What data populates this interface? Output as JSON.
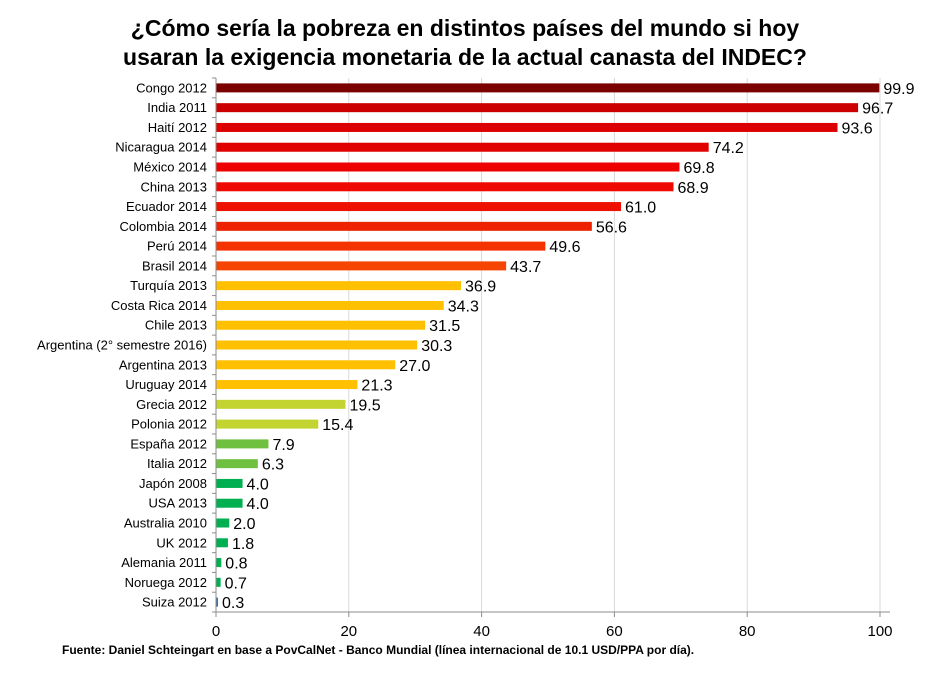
{
  "chart_data": {
    "type": "bar",
    "orientation": "horizontal",
    "title_lines": [
      "¿Cómo sería la pobreza en distintos países del mundo si hoy",
      "usaran la exigencia monetaria de la actual canasta del INDEC?"
    ],
    "categories": [
      "Congo 2012",
      "India 2011",
      "Haití 2012",
      "Nicaragua 2014",
      "México 2014",
      "China 2013",
      "Ecuador 2014",
      "Colombia 2014",
      "Perú 2014",
      "Brasil 2014",
      "Turquía 2013",
      "Costa Rica 2014",
      "Chile 2013",
      "Argentina (2° semestre 2016)",
      "Argentina 2013",
      "Uruguay 2014",
      "Grecia 2012",
      "Polonia 2012",
      "España 2012",
      "Italia 2012",
      "Japón 2008",
      "USA 2013",
      "Australia 2010",
      "UK 2012",
      "Alemania 2011",
      "Noruega 2012",
      "Suiza 2012"
    ],
    "values": [
      99.9,
      96.7,
      93.6,
      74.2,
      69.8,
      68.9,
      61.0,
      56.6,
      49.6,
      43.7,
      36.9,
      34.3,
      31.5,
      30.3,
      27.0,
      21.3,
      19.5,
      15.4,
      7.9,
      6.3,
      4.0,
      4.0,
      2.0,
      1.8,
      0.8,
      0.7,
      0.3
    ],
    "value_labels": [
      "99.9",
      "96.7",
      "93.6",
      "74.2",
      "69.8",
      "68.9",
      "61.0",
      "56.6",
      "49.6",
      "43.7",
      "36.9",
      "34.3",
      "31.5",
      "30.3",
      "27.0",
      "21.3",
      "19.5",
      "15.4",
      "7.9",
      "6.3",
      "4.0",
      "4.0",
      "2.0",
      "1.8",
      "0.8",
      "0.7",
      "0.3"
    ],
    "colors": [
      "#7b0000",
      "#cc0000",
      "#dd0000",
      "#e00000",
      "#ee0000",
      "#ee0a00",
      "#ee1100",
      "#ee2200",
      "#f53300",
      "#f54500",
      "#ffc000",
      "#ffc000",
      "#ffc000",
      "#ffc000",
      "#ffc000",
      "#ffc000",
      "#c3d430",
      "#c3d430",
      "#70c040",
      "#70c040",
      "#00b050",
      "#00b050",
      "#00b050",
      "#00b050",
      "#00b050",
      "#00b050",
      "#2e75b6"
    ],
    "xlim": [
      0,
      100
    ],
    "xticks": [
      "0",
      "20",
      "40",
      "60",
      "80",
      "100"
    ],
    "xtick_values": [
      0,
      20,
      40,
      60,
      80,
      100
    ],
    "grid": true,
    "legend": "none"
  },
  "source": "Fuente: Daniel Schteingart en base a PovCalNet - Banco Mundial (línea internacional de 10.1 USD/PPA por día)."
}
